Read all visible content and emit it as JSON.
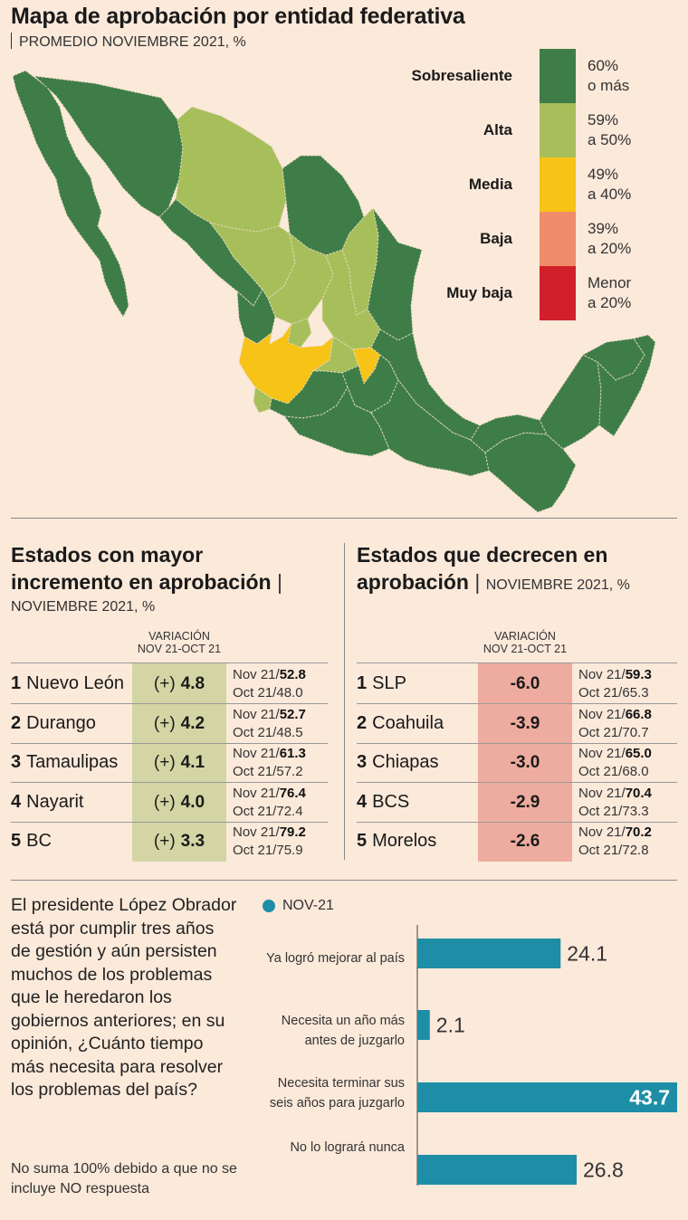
{
  "title": "Mapa de aprobación por entidad federativa",
  "subtitle": "PROMEDIO NOVIEMBRE 2021, %",
  "legend": [
    {
      "label": "Sobresaliente",
      "range_top": "60%",
      "range_bottom": "o más",
      "color": "#3f7d48"
    },
    {
      "label": "Alta",
      "range_top": "59%",
      "range_bottom": "a 50%",
      "color": "#a7bf5a"
    },
    {
      "label": "Media",
      "range_top": "49%",
      "range_bottom": "a 40%",
      "color": "#f6c316"
    },
    {
      "label": "Baja",
      "range_top": "39%",
      "range_bottom": "a 20%",
      "color": "#f08c6a"
    },
    {
      "label": "Muy baja",
      "range_top": "Menor",
      "range_bottom": "a 20%",
      "color": "#d1202a"
    }
  ],
  "increase": {
    "title_line1": "Estados con mayor",
    "title_line2": "incremento en aprobación",
    "note": "NOVIEMBRE 2021, %",
    "var_head1": "VARIACIÓN",
    "var_head2": "NOV 21-OCT 21",
    "highlight_color": "#d3d6a4",
    "rows": [
      {
        "rank": "1",
        "state": "Nuevo León",
        "sign": "(+)",
        "value": "4.8",
        "nov_label": "Nov 21/",
        "nov": "52.8",
        "oct": "Oct 21/48.0"
      },
      {
        "rank": "2",
        "state": "Durango",
        "sign": "(+)",
        "value": "4.2",
        "nov_label": "Nov 21/",
        "nov": "52.7",
        "oct": "Oct 21/48.5"
      },
      {
        "rank": "3",
        "state": "Tamaulipas",
        "sign": "(+)",
        "value": "4.1",
        "nov_label": "Nov 21/",
        "nov": "61.3",
        "oct": "Oct 21/57.2"
      },
      {
        "rank": "4",
        "state": "Nayarit",
        "sign": "(+)",
        "value": "4.0",
        "nov_label": "Nov 21/",
        "nov": "76.4",
        "oct": "Oct 21/72.4"
      },
      {
        "rank": "5",
        "state": "BC",
        "sign": "(+)",
        "value": "3.3",
        "nov_label": "Nov 21/",
        "nov": "79.2",
        "oct": "Oct 21/75.9"
      }
    ]
  },
  "decrease": {
    "title_line1": "Estados que decrecen en",
    "title_line2": "aprobación",
    "note": "NOVIEMBRE 2021, %",
    "var_head1": "VARIACIÓN",
    "var_head2": "NOV 21-OCT 21",
    "highlight_color": "#eeaca0",
    "rows": [
      {
        "rank": "1",
        "state": "SLP",
        "value": "-6.0",
        "nov_label": "Nov 21/",
        "nov": "59.3",
        "oct": "Oct 21/65.3"
      },
      {
        "rank": "2",
        "state": "Coahuila",
        "value": "-3.9",
        "nov_label": "Nov 21/",
        "nov": "66.8",
        "oct": "Oct 21/70.7"
      },
      {
        "rank": "3",
        "state": "Chiapas",
        "value": "-3.0",
        "nov_label": "Nov 21/",
        "nov": "65.0",
        "oct": "Oct 21/68.0"
      },
      {
        "rank": "4",
        "state": "BCS",
        "value": "-2.9",
        "nov_label": "Nov 21/",
        "nov": "70.4",
        "oct": "Oct 21/73.3"
      },
      {
        "rank": "5",
        "state": "Morelos",
        "value": "-2.6",
        "nov_label": "Nov 21/",
        "nov": "70.2",
        "oct": "Oct 21/72.8"
      }
    ]
  },
  "question": {
    "text": "El presidente López Obrador está por cumplir tres años de gestión y aún persisten muchos de los problemas que le heredaron los gobiernos anteriores; en su opinión, ¿Cuánto tiempo más necesita para resolver los problemas del país?",
    "note": "No suma 100% debido a que no se incluye NO respuesta"
  },
  "chart_data": {
    "type": "bar",
    "orientation": "horizontal",
    "series": [
      {
        "name": "NOV-21",
        "values": [
          24.1,
          2.1,
          43.7,
          26.8
        ]
      }
    ],
    "categories": [
      [
        "Ya logró mejorar al país"
      ],
      [
        "Necesita un año más",
        "antes de juzgarlo"
      ],
      [
        "Necesita terminar sus",
        "seis años para juzgarlo"
      ],
      [
        "No lo logrará nunca"
      ]
    ],
    "value_labels": [
      "24.1",
      "2.1",
      "43.7",
      "26.8"
    ],
    "color": "#1d8ea6",
    "xlim": [
      0,
      43.7
    ]
  }
}
